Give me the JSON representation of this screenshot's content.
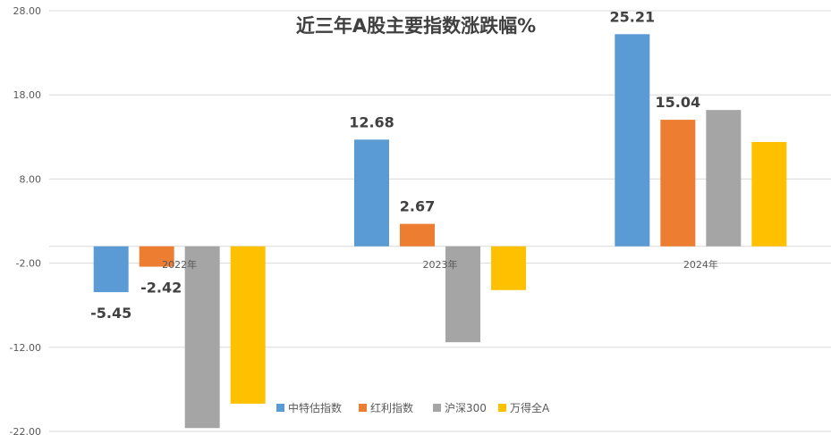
{
  "chart_data": {
    "type": "bar",
    "title": "近三年A股主要指数涨跌幅%",
    "categories": [
      "2022年",
      "2023年",
      "2024年"
    ],
    "series": [
      {
        "name": "中特估指数",
        "color": "#5b9bd5",
        "values": [
          -5.45,
          12.68,
          25.21
        ],
        "labels": [
          "-5.45",
          "12.68",
          "25.21"
        ]
      },
      {
        "name": "红利指数",
        "color": "#ed7d31",
        "values": [
          -2.42,
          2.67,
          15.04
        ],
        "labels": [
          "-2.42",
          "2.67",
          "15.04"
        ]
      },
      {
        "name": "沪深300",
        "color": "#a5a5a5",
        "values": [
          -21.6,
          -11.4,
          16.2
        ],
        "labels": [
          "",
          "",
          ""
        ]
      },
      {
        "name": "万得全A",
        "color": "#ffc000",
        "values": [
          -18.7,
          -5.2,
          12.4
        ],
        "labels": [
          "",
          "",
          ""
        ]
      }
    ],
    "yticks": [
      "28.00",
      "18.00",
      "8.00",
      "-2.00",
      "-12.00",
      "-22.00"
    ],
    "ylim": [
      -22,
      28
    ],
    "grid": true,
    "legend_position": "bottom-right"
  }
}
